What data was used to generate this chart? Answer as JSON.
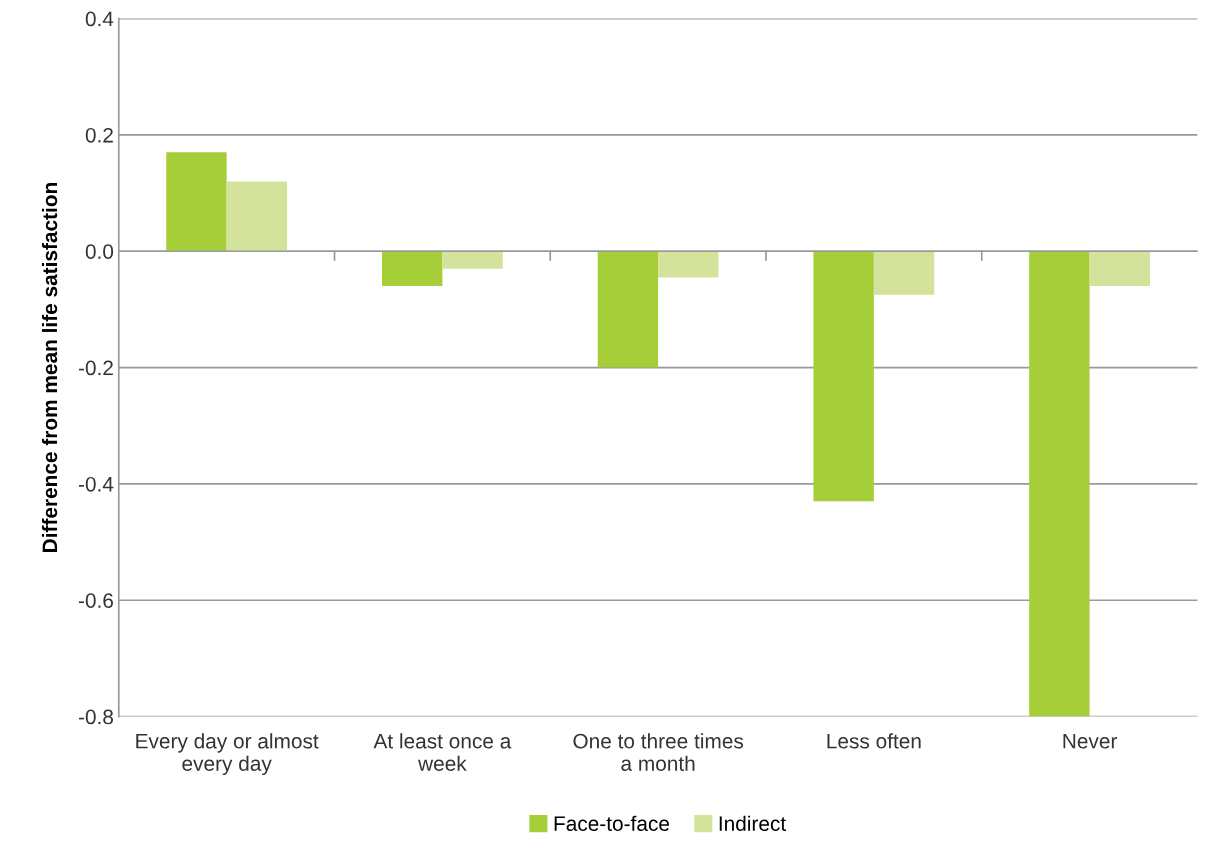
{
  "chart_data": {
    "type": "bar",
    "ylabel": "Difference from mean life satisfaction",
    "categories": [
      "Every day or almost\nevery day",
      "At least once a\nweek",
      "One to three times\na month",
      "Less often",
      "Never"
    ],
    "series": [
      {
        "name": "Face-to-face",
        "color": "#a6ce39",
        "values": [
          0.17,
          -0.06,
          -0.2,
          -0.43,
          -0.8
        ]
      },
      {
        "name": "Indirect",
        "color": "#d4e39b",
        "values": [
          0.12,
          -0.03,
          -0.045,
          -0.075,
          -0.06
        ]
      }
    ],
    "ylim": [
      -0.8,
      0.4
    ],
    "yticks": [
      -0.8,
      -0.6,
      -0.4,
      -0.2,
      {
        "value": 0,
        "label": "0.0"
      },
      0.2,
      0.4
    ],
    "grid": "y",
    "legend": "bottom"
  }
}
